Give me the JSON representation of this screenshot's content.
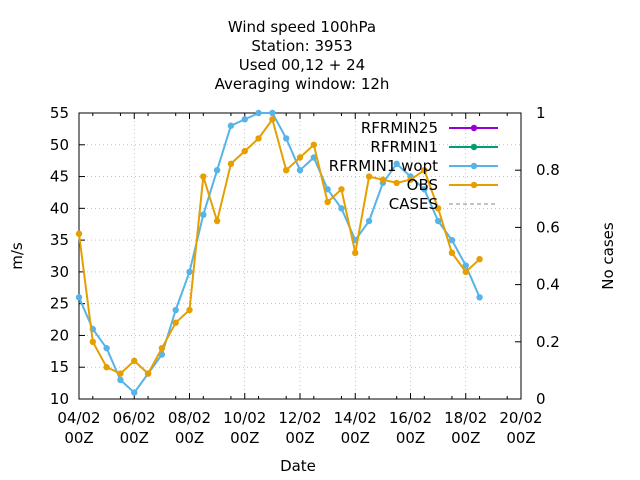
{
  "chart_data": {
    "type": "line",
    "title_lines": [
      "Wind speed 100hPa",
      "Station:      3953",
      "Used  00,12  + 24",
      "Averaging window: 12h"
    ],
    "xlabel": "Date",
    "ylabel": "m/s",
    "y2label": "No cases",
    "ylim": [
      10,
      55
    ],
    "yticks": [
      10,
      15,
      20,
      25,
      30,
      35,
      40,
      45,
      50,
      55
    ],
    "y2lim": [
      0,
      1
    ],
    "y2ticks": [
      0,
      0.2,
      0.4,
      0.6,
      0.8,
      1
    ],
    "xlim_days": [
      0,
      16
    ],
    "xticks": [
      {
        "day": 0,
        "line1": "04/02",
        "line2": "00Z"
      },
      {
        "day": 2,
        "line1": "06/02",
        "line2": "00Z"
      },
      {
        "day": 4,
        "line1": "08/02",
        "line2": "00Z"
      },
      {
        "day": 6,
        "line1": "10/02",
        "line2": "00Z"
      },
      {
        "day": 8,
        "line1": "12/02",
        "line2": "00Z"
      },
      {
        "day": 10,
        "line1": "14/02",
        "line2": "00Z"
      },
      {
        "day": 12,
        "line1": "16/02",
        "line2": "00Z"
      },
      {
        "day": 14,
        "line1": "18/02",
        "line2": "00Z"
      },
      {
        "day": 16,
        "line1": "20/02",
        "line2": "00Z"
      }
    ],
    "legend_position": "top-right",
    "series": [
      {
        "name": "RFRMIN25",
        "color": "#9400d3",
        "marker": "point",
        "x": [],
        "y": []
      },
      {
        "name": "RFRMIN1",
        "color": "#009e73",
        "marker": "point",
        "x": [],
        "y": []
      },
      {
        "name": "RFRMIN1 wopt",
        "color": "#56b4e9",
        "marker": "point",
        "x": [
          0,
          0.5,
          1,
          1.5,
          2,
          2.5,
          3,
          3.5,
          4,
          4.5,
          5,
          5.5,
          6,
          6.5,
          7,
          7.5,
          8,
          8.5,
          9,
          9.5,
          10,
          10.5,
          11,
          11.5,
          12,
          12.5,
          13,
          13.5,
          14,
          14.5
        ],
        "y": [
          26,
          21,
          18,
          13,
          11,
          14,
          17,
          24,
          30,
          39,
          46,
          53,
          54,
          55,
          55,
          51,
          46,
          48,
          43,
          40,
          35,
          38,
          44,
          47,
          45,
          43,
          38,
          35,
          31,
          26
        ]
      },
      {
        "name": "OBS",
        "color": "#e69f00",
        "marker": "point",
        "x": [
          0,
          0.5,
          1,
          1.5,
          2,
          2.5,
          3,
          3.5,
          4,
          4.5,
          5,
          5.5,
          6,
          6.5,
          7,
          7.5,
          8,
          8.5,
          9,
          9.5,
          10,
          10.5,
          11,
          11.5,
          12,
          12.5,
          13,
          13.5,
          14,
          14.5
        ],
        "y": [
          36,
          19,
          15,
          14,
          16,
          14,
          18,
          22,
          24,
          45,
          38,
          47,
          49,
          51,
          54,
          46,
          48,
          50,
          41,
          43,
          33,
          45,
          44.5,
          44,
          44.5,
          46,
          40,
          33,
          30,
          32
        ]
      },
      {
        "name": "CASES",
        "color": "#888888",
        "dash": true,
        "x": [],
        "y": []
      }
    ]
  }
}
